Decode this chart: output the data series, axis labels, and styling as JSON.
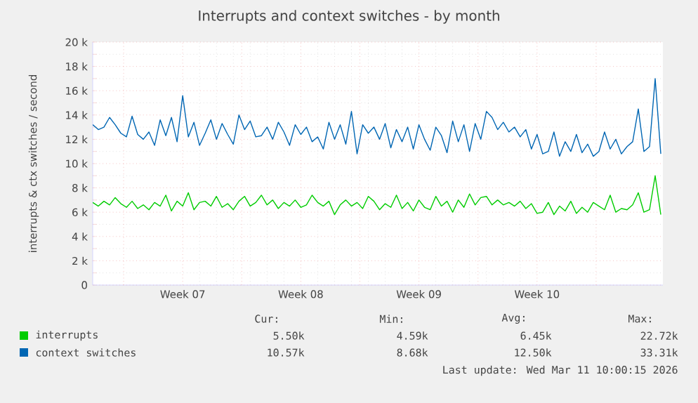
{
  "chart_data": {
    "type": "line",
    "title": "Interrupts and context switches - by month",
    "ylabel": "interrupts & ctx switches / second",
    "xlim": [
      "2026-02-07T04:00",
      "2026-03-12T23:00"
    ],
    "ylim": [
      0,
      20
    ],
    "xticks": [
      {
        "value": "2026-02-09T00:00",
        "label": null
      },
      {
        "value": "2026-02-12T12:00",
        "label": "Week 07"
      },
      {
        "value": "2026-02-16T00:00",
        "label": null
      },
      {
        "value": "2026-02-19T12:00",
        "label": "Week 08"
      },
      {
        "value": "2026-02-23T00:00",
        "label": null
      },
      {
        "value": "2026-02-26T12:00",
        "label": "Week 09"
      },
      {
        "value": "2026-03-02T00:00",
        "label": null
      },
      {
        "value": "2026-03-05T12:00",
        "label": "Week 10"
      },
      {
        "value": "2026-03-09T00:00",
        "label": null
      }
    ],
    "yticks": [
      0,
      {
        "value": 2,
        "label": "2 k"
      },
      {
        "value": 4,
        "label": "4 k"
      },
      {
        "value": 6,
        "label": "6 k"
      },
      {
        "value": 8,
        "label": "8 k"
      },
      {
        "value": 10,
        "label": "10 k"
      },
      {
        "value": 12,
        "label": "12 k"
      },
      {
        "value": 14,
        "label": "14 k"
      },
      {
        "value": 16,
        "label": "16 k"
      },
      {
        "value": 18,
        "label": "18 k"
      },
      {
        "value": 20,
        "label": "20 k"
      }
    ],
    "grid": true,
    "legend": "bottom",
    "x": [
      "2026-02-07T04:00",
      "2026-02-07T12:00",
      "2026-02-07T20:00",
      "2026-02-08T04:00",
      "2026-02-08T12:00",
      "2026-02-08T20:00",
      "2026-02-09T04:00",
      "2026-02-09T12:00",
      "2026-02-09T20:00",
      "2026-02-10T04:00",
      "2026-02-10T12:00",
      "2026-02-10T20:00",
      "2026-02-11T04:00",
      "2026-02-11T12:00",
      "2026-02-11T20:00",
      "2026-02-12T04:00",
      "2026-02-12T12:00",
      "2026-02-12T20:00",
      "2026-02-13T04:00",
      "2026-02-13T12:00",
      "2026-02-13T20:00",
      "2026-02-14T04:00",
      "2026-02-14T12:00",
      "2026-02-14T20:00",
      "2026-02-15T04:00",
      "2026-02-15T12:00",
      "2026-02-15T20:00",
      "2026-02-16T04:00",
      "2026-02-16T12:00",
      "2026-02-16T20:00",
      "2026-02-17T04:00",
      "2026-02-17T12:00",
      "2026-02-17T20:00",
      "2026-02-18T04:00",
      "2026-02-18T12:00",
      "2026-02-18T20:00",
      "2026-02-19T04:00",
      "2026-02-19T12:00",
      "2026-02-19T20:00",
      "2026-02-20T04:00",
      "2026-02-20T12:00",
      "2026-02-20T20:00",
      "2026-02-21T04:00",
      "2026-02-21T12:00",
      "2026-02-21T20:00",
      "2026-02-22T04:00",
      "2026-02-22T12:00",
      "2026-02-22T20:00",
      "2026-02-23T04:00",
      "2026-02-23T12:00",
      "2026-02-23T20:00",
      "2026-02-24T04:00",
      "2026-02-24T12:00",
      "2026-02-24T20:00",
      "2026-02-25T04:00",
      "2026-02-25T12:00",
      "2026-02-25T20:00",
      "2026-02-26T04:00",
      "2026-02-26T12:00",
      "2026-02-26T20:00",
      "2026-02-27T04:00",
      "2026-02-27T12:00",
      "2026-02-27T20:00",
      "2026-02-28T04:00",
      "2026-02-28T12:00",
      "2026-02-28T20:00",
      "2026-03-01T04:00",
      "2026-03-01T12:00",
      "2026-03-01T20:00",
      "2026-03-02T04:00",
      "2026-03-02T12:00",
      "2026-03-02T20:00",
      "2026-03-03T04:00",
      "2026-03-03T12:00",
      "2026-03-03T20:00",
      "2026-03-04T04:00",
      "2026-03-04T12:00",
      "2026-03-04T20:00",
      "2026-03-05T04:00",
      "2026-03-05T12:00",
      "2026-03-05T20:00",
      "2026-03-06T04:00",
      "2026-03-06T12:00",
      "2026-03-06T20:00",
      "2026-03-07T04:00",
      "2026-03-07T12:00",
      "2026-03-07T20:00",
      "2026-03-08T04:00",
      "2026-03-08T12:00",
      "2026-03-08T20:00",
      "2026-03-09T04:00",
      "2026-03-09T12:00",
      "2026-03-09T20:00",
      "2026-03-10T04:00",
      "2026-03-10T12:00",
      "2026-03-10T20:00",
      "2026-03-11T04:00",
      "2026-03-11T12:00",
      "2026-03-11T20:00",
      "2026-03-12T04:00",
      "2026-03-12T12:00",
      "2026-03-12T20:00"
    ],
    "series": [
      {
        "name": "interrupts",
        "color": "#00cc00",
        "values": [
          6.8,
          6.5,
          6.9,
          6.6,
          7.2,
          6.7,
          6.4,
          6.9,
          6.3,
          6.6,
          6.2,
          6.8,
          6.5,
          7.4,
          6.1,
          6.9,
          6.5,
          7.6,
          6.2,
          6.8,
          6.9,
          6.5,
          7.3,
          6.4,
          6.7,
          6.2,
          6.9,
          7.3,
          6.5,
          6.8,
          7.4,
          6.6,
          7.0,
          6.3,
          6.8,
          6.5,
          7.0,
          6.4,
          6.6,
          7.4,
          6.8,
          6.5,
          6.9,
          5.8,
          6.6,
          7.0,
          6.5,
          6.8,
          6.3,
          7.3,
          6.9,
          6.2,
          6.7,
          6.4,
          7.4,
          6.3,
          6.8,
          6.1,
          7.0,
          6.4,
          6.2,
          7.3,
          6.5,
          6.9,
          6.0,
          7.0,
          6.4,
          7.5,
          6.6,
          7.2,
          7.3,
          6.6,
          7.0,
          6.6,
          6.8,
          6.5,
          6.9,
          6.3,
          6.7,
          5.9,
          6.0,
          6.8,
          5.8,
          6.5,
          6.1,
          6.9,
          5.9,
          6.4,
          6.0,
          6.8,
          6.5,
          6.2,
          7.4,
          6.0,
          6.3,
          6.2,
          6.6,
          7.6,
          6.0,
          6.2,
          9.0,
          5.8
        ]
      },
      {
        "name": "context switches",
        "color": "#0066b3",
        "values": [
          13.2,
          12.8,
          13.0,
          13.8,
          13.2,
          12.5,
          12.2,
          13.9,
          12.4,
          12.0,
          12.6,
          11.5,
          13.6,
          12.3,
          13.8,
          11.8,
          15.6,
          12.2,
          13.4,
          11.5,
          12.5,
          13.6,
          12.0,
          13.3,
          12.4,
          11.6,
          14.0,
          12.8,
          13.5,
          12.2,
          12.3,
          13.0,
          12.0,
          13.4,
          12.6,
          11.5,
          13.2,
          12.4,
          13.0,
          11.8,
          12.2,
          11.2,
          13.4,
          12.0,
          13.2,
          11.6,
          14.3,
          10.8,
          13.2,
          12.5,
          13.0,
          12.0,
          13.3,
          11.3,
          12.8,
          11.8,
          13.0,
          11.2,
          13.2,
          12.0,
          11.1,
          13.0,
          12.3,
          10.9,
          13.5,
          11.8,
          13.2,
          11.0,
          13.3,
          12.0,
          14.3,
          13.8,
          12.8,
          13.4,
          12.6,
          13.0,
          12.2,
          12.8,
          11.2,
          12.4,
          10.8,
          11.0,
          12.6,
          10.6,
          11.8,
          11.0,
          12.4,
          10.9,
          11.6,
          10.6,
          11.0,
          12.6,
          11.2,
          12.0,
          10.8,
          11.4,
          11.8,
          14.5,
          11.0,
          11.4,
          17.0,
          10.8
        ]
      }
    ],
    "annotations": [
      "Cur:",
      "Min:",
      "Avg:",
      "Max:",
      "5.50k",
      "4.59k",
      "6.45k",
      "22.72k",
      "10.57k",
      "8.68k",
      "12.50k",
      "33.31k",
      "Last update: Wed Mar 11 10:00:15 2026"
    ]
  }
}
